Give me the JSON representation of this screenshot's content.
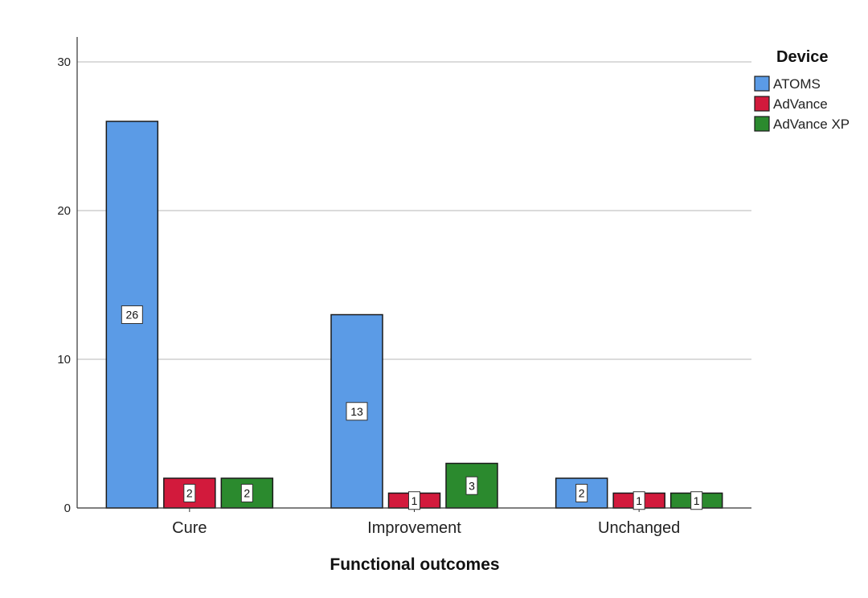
{
  "chart_data": {
    "type": "bar",
    "title": "",
    "xlabel": "Functional outcomes",
    "ylabel": "",
    "categories": [
      "Cure",
      "Improvement",
      "Unchanged"
    ],
    "series": [
      {
        "name": "ATOMS",
        "values": [
          26,
          13,
          2
        ],
        "color": "#5b9be6"
      },
      {
        "name": "AdVance",
        "values": [
          2,
          1,
          1
        ],
        "color": "#d21a3c"
      },
      {
        "name": "AdVance XP",
        "values": [
          2,
          3,
          1
        ],
        "color": "#2b8a2e"
      }
    ],
    "ylim": [
      0,
      30
    ],
    "yticks": [
      0,
      10,
      20,
      30
    ],
    "grid": true,
    "legend": {
      "title": "Device",
      "placement": "top-right"
    },
    "data_labels": true
  }
}
